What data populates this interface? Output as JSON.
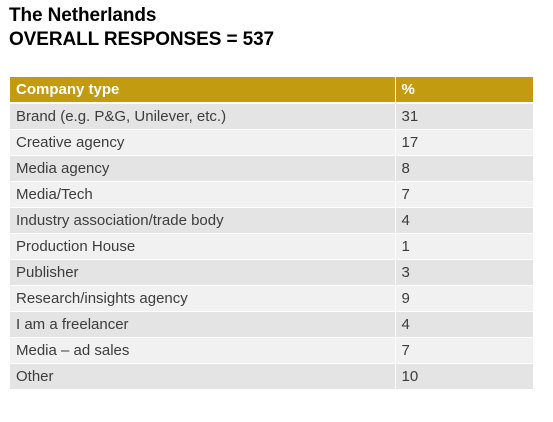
{
  "header": {
    "title_line1": "The Netherlands",
    "title_line2": "OVERALL RESPONSES = 537"
  },
  "table": {
    "columns": [
      "Company type",
      "%"
    ],
    "rows": [
      {
        "type": "Brand (e.g. P&G, Unilever, etc.)",
        "pct": "31"
      },
      {
        "type": "Creative agency",
        "pct": "17"
      },
      {
        "type": "Media agency",
        "pct": "8"
      },
      {
        "type": "Media/Tech",
        "pct": "7"
      },
      {
        "type": "Industry association/trade body",
        "pct": "4"
      },
      {
        "type": "Production House",
        "pct": "1"
      },
      {
        "type": "Publisher",
        "pct": "3"
      },
      {
        "type": "Research/insights agency",
        "pct": "9"
      },
      {
        "type": "I am a freelancer",
        "pct": "4"
      },
      {
        "type": "Media – ad sales",
        "pct": "7"
      },
      {
        "type": "Other",
        "pct": "10"
      }
    ]
  },
  "colors": {
    "header_bg": "#c29b11",
    "row_odd": "#e4e4e4",
    "row_even": "#f1f1f1"
  }
}
